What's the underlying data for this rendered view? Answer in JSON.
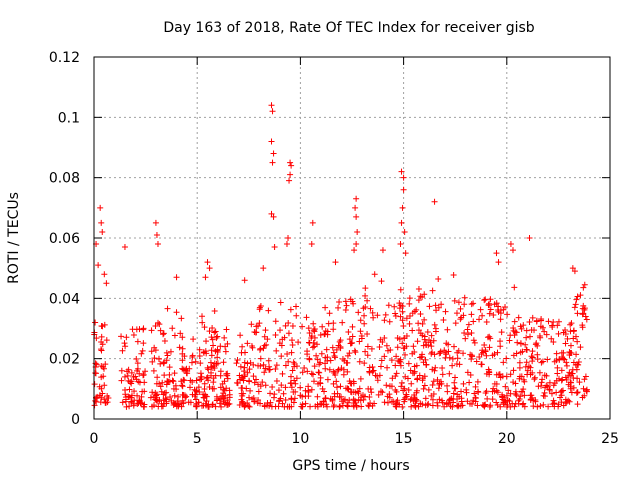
{
  "chart_data": {
    "type": "scatter",
    "title": "Day 163 of 2018, Rate Of TEC Index for receiver gisb",
    "xlabel": "GPS time / hours",
    "ylabel": "ROTI / TECUs",
    "xlim": [
      0,
      25
    ],
    "ylim": [
      0,
      0.12
    ],
    "x_ticks": [
      0,
      5,
      10,
      15,
      20,
      25
    ],
    "x_tick_labels": [
      "0",
      "5",
      "10",
      "15",
      "20",
      "25"
    ],
    "y_ticks": [
      0,
      0.02,
      0.04,
      0.06,
      0.08,
      0.1,
      0.12
    ],
    "y_tick_labels": [
      "0",
      "0.02",
      "0.04",
      "0.06",
      "0.08",
      "0.1",
      "0.12"
    ],
    "grid": true,
    "marker": "+",
    "color": "#ff0000",
    "series": [
      {
        "name": "ROTI",
        "points": [
          [
            0.1,
            0.058
          ],
          [
            0.2,
            0.051
          ],
          [
            0.3,
            0.07
          ],
          [
            0.35,
            0.065
          ],
          [
            0.4,
            0.062
          ],
          [
            0.5,
            0.048
          ],
          [
            1.5,
            0.057
          ],
          [
            3.0,
            0.065
          ],
          [
            3.05,
            0.061
          ],
          [
            3.1,
            0.058
          ],
          [
            8.6,
            0.104
          ],
          [
            8.65,
            0.102
          ],
          [
            8.6,
            0.092
          ],
          [
            8.7,
            0.088
          ],
          [
            8.65,
            0.085
          ],
          [
            8.6,
            0.068
          ],
          [
            8.7,
            0.067
          ],
          [
            8.75,
            0.057
          ],
          [
            9.5,
            0.085
          ],
          [
            9.55,
            0.084
          ],
          [
            9.5,
            0.081
          ],
          [
            9.45,
            0.079
          ],
          [
            9.4,
            0.06
          ],
          [
            9.35,
            0.058
          ],
          [
            10.6,
            0.065
          ],
          [
            10.55,
            0.058
          ],
          [
            12.7,
            0.073
          ],
          [
            12.65,
            0.07
          ],
          [
            12.7,
            0.067
          ],
          [
            12.75,
            0.062
          ],
          [
            12.7,
            0.058
          ],
          [
            12.6,
            0.056
          ],
          [
            14.0,
            0.056
          ],
          [
            14.9,
            0.082
          ],
          [
            15.0,
            0.08
          ],
          [
            15.0,
            0.076
          ],
          [
            14.95,
            0.07
          ],
          [
            14.9,
            0.065
          ],
          [
            15.05,
            0.062
          ],
          [
            14.85,
            0.058
          ],
          [
            15.1,
            0.055
          ],
          [
            16.5,
            0.072
          ],
          [
            19.5,
            0.055
          ],
          [
            19.6,
            0.052
          ],
          [
            20.2,
            0.058
          ],
          [
            20.3,
            0.056
          ],
          [
            21.1,
            0.06
          ],
          [
            23.2,
            0.05
          ],
          [
            23.3,
            0.049
          ],
          [
            5.5,
            0.052
          ],
          [
            5.6,
            0.05
          ],
          [
            5.4,
            0.047
          ],
          [
            0.6,
            0.045
          ],
          [
            4.0,
            0.047
          ],
          [
            7.3,
            0.046
          ],
          [
            8.2,
            0.05
          ],
          [
            11.7,
            0.052
          ],
          [
            13.6,
            0.048
          ]
        ]
      }
    ]
  }
}
